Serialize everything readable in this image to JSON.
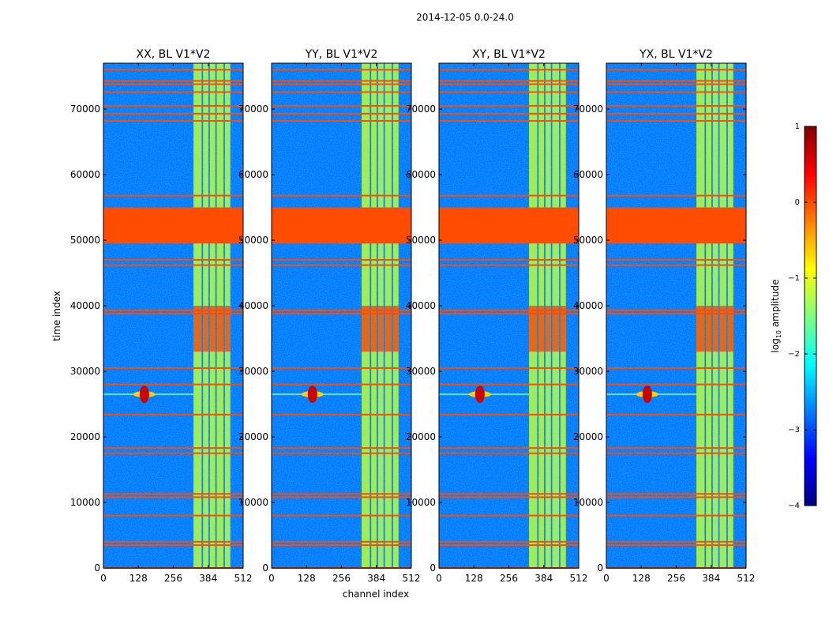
{
  "figure_title": "2014-12-05 0.0-24.0",
  "chart_data": {
    "type": "heatmap",
    "suptitle": "2014-12-05 0.0-24.0",
    "xlabel": "channel index",
    "ylabel": "time index",
    "xlim": [
      0,
      512
    ],
    "ylim": [
      0,
      77000
    ],
    "x_ticks": [
      0,
      128,
      256,
      384,
      512
    ],
    "y_ticks": [
      0,
      10000,
      20000,
      30000,
      40000,
      50000,
      60000,
      70000
    ],
    "colorbar": {
      "label": "log10 amplitude",
      "label_base": "log",
      "label_sub": "10",
      "label_rest": " amplitude",
      "range": [
        -4,
        1
      ],
      "ticks": [
        1,
        0,
        -1,
        -2,
        -3,
        -4
      ],
      "tick_labels": [
        "1",
        "0",
        "−1",
        "−2",
        "−3",
        "−4"
      ],
      "colormap": "jet"
    },
    "panels": [
      {
        "name": "XX",
        "title": "XX, BL V1*V2"
      },
      {
        "name": "YY",
        "title": "YY, BL V1*V2"
      },
      {
        "name": "XY",
        "title": "XY, BL V1*V2"
      },
      {
        "name": "YX",
        "title": "YX, BL V1*V2"
      }
    ],
    "background_level": -2.8,
    "flagged_value": 0,
    "flagged_time_ranges": [
      [
        49500,
        55000
      ]
    ],
    "flagged_time_lines": [
      0,
      3500,
      4000,
      8000,
      10800,
      11300,
      17500,
      18300,
      23400,
      28000,
      30500,
      38800,
      39300,
      46200,
      47000,
      56800,
      68200,
      69300,
      70500,
      72600,
      73800,
      74300,
      76000
    ],
    "bright_channel_blocks": [
      [
        330,
        360
      ],
      [
        365,
        385
      ],
      [
        390,
        410
      ],
      [
        415,
        440
      ],
      [
        445,
        465
      ]
    ],
    "rfi_burst": {
      "channel": 150,
      "time": 26500
    }
  }
}
